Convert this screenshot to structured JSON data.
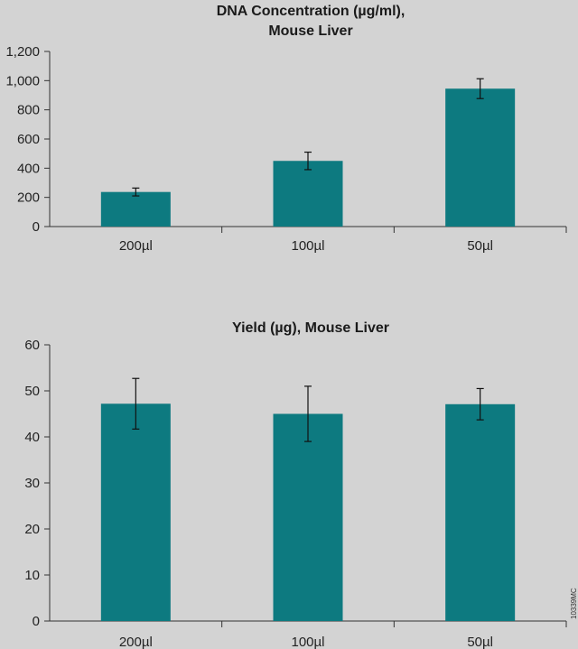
{
  "chart_data": [
    {
      "type": "bar",
      "title": [
        "DNA Concentration (µg/ml),",
        "Mouse Liver"
      ],
      "categories": [
        "200µl",
        "100µl",
        "50µl"
      ],
      "values": [
        237,
        450,
        945
      ],
      "errors": [
        27,
        60,
        68
      ],
      "ylim": [
        0,
        1200
      ],
      "yticks": [
        0,
        200,
        400,
        600,
        800,
        1000,
        1200
      ],
      "ytick_labels": [
        "0",
        "200",
        "400",
        "600",
        "800",
        "1,000",
        "1,200"
      ],
      "grid": false,
      "bar_color": "#0d7a80"
    },
    {
      "type": "bar",
      "title": [
        "Yield (µg), Mouse Liver"
      ],
      "categories": [
        "200µl",
        "100µl",
        "50µl"
      ],
      "values": [
        47.2,
        45.0,
        47.1
      ],
      "errors": [
        5.5,
        6.0,
        3.4
      ],
      "ylim": [
        0,
        60
      ],
      "yticks": [
        0,
        10,
        20,
        30,
        40,
        50,
        60
      ],
      "ytick_labels": [
        "0",
        "10",
        "20",
        "30",
        "40",
        "50",
        "60"
      ],
      "grid": false,
      "bar_color": "#0d7a80"
    }
  ],
  "figure_code": "10339MC"
}
